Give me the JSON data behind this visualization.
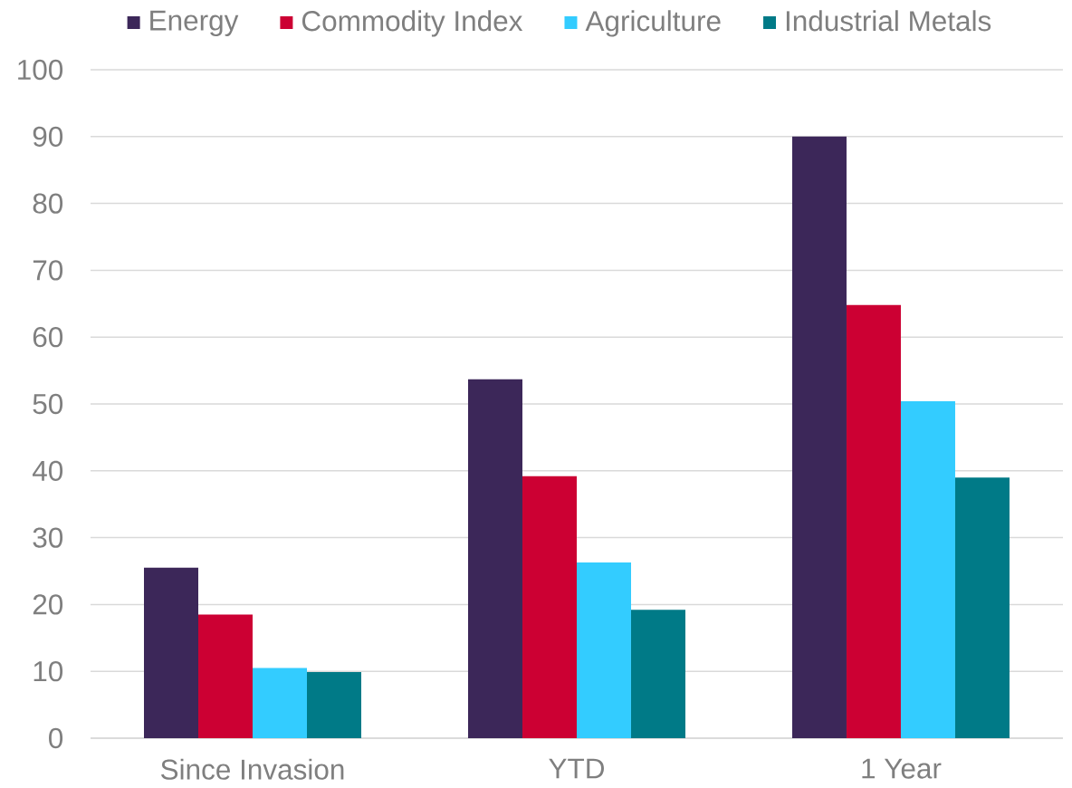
{
  "chart_data": {
    "type": "bar",
    "categories": [
      "Since Invasion",
      "YTD",
      "1 Year"
    ],
    "series": [
      {
        "name": "Energy",
        "color": "#3c2759",
        "values": [
          25.5,
          53.7,
          90.0
        ]
      },
      {
        "name": "Commodity Index",
        "color": "#cc0033",
        "values": [
          18.5,
          39.2,
          64.8
        ]
      },
      {
        "name": "Agriculture",
        "color": "#33ccff",
        "values": [
          10.5,
          26.3,
          50.4
        ]
      },
      {
        "name": "Industrial Metals",
        "color": "#007a87",
        "values": [
          9.9,
          19.2,
          39.0
        ]
      }
    ],
    "ylim": [
      0,
      100
    ],
    "yticks": [
      0,
      10,
      20,
      30,
      40,
      50,
      60,
      70,
      80,
      90,
      100
    ],
    "grid": "y",
    "legend": "top"
  }
}
